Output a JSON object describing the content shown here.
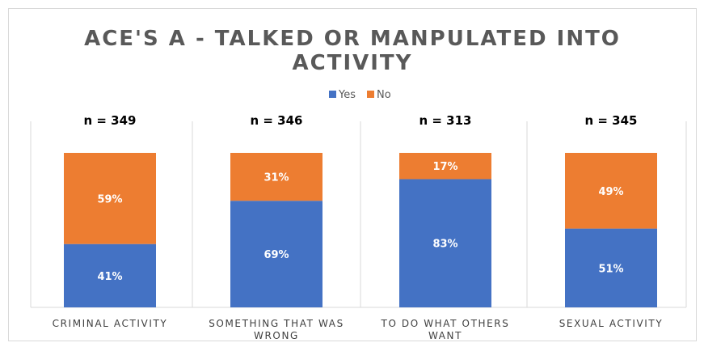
{
  "chart_data": {
    "type": "bar",
    "stacked": true,
    "percent": true,
    "title_lines": [
      "ACE'S A - TALKED OR MANPULATED INTO",
      "ACTIVITY"
    ],
    "legend": {
      "position": "top",
      "items": [
        "Yes",
        "No"
      ]
    },
    "categories": [
      [
        "CRIMINAL ACTIVITY"
      ],
      [
        "SOMETHING THAT WAS",
        "WRONG"
      ],
      [
        "TO DO WHAT OTHERS",
        "WANT"
      ],
      [
        "SEXUAL ACTIVITY"
      ]
    ],
    "n_labels": [
      "n = 349",
      "n = 346",
      "n = 313",
      "n = 345"
    ],
    "series": [
      {
        "name": "Yes",
        "color": "#4472c4",
        "values": [
          41,
          69,
          83,
          51
        ],
        "labels": [
          "41%",
          "69%",
          "83%",
          "51%"
        ]
      },
      {
        "name": "No",
        "color": "#ed7d31",
        "values": [
          59,
          31,
          17,
          49
        ],
        "labels": [
          "59%",
          "31%",
          "17%",
          "49%"
        ]
      }
    ],
    "ylim": [
      0,
      100
    ],
    "grid": false,
    "panel_dividers": true
  }
}
